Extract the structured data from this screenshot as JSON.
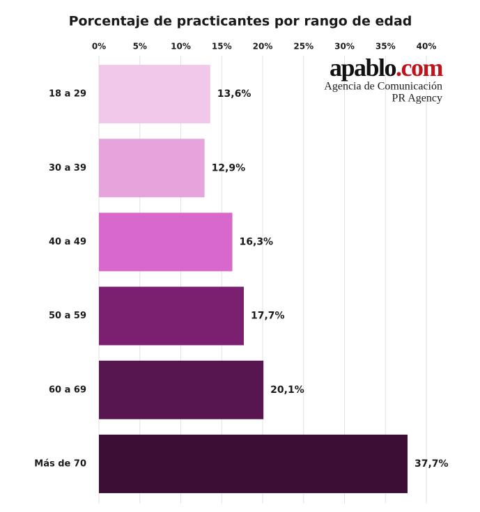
{
  "chart_data": {
    "type": "bar",
    "orientation": "horizontal",
    "title": "Porcentaje de practicantes por rango de edad",
    "categories": [
      "18 a 29",
      "30 a 39",
      "40 a 49",
      "50 a 59",
      "60 a 69",
      "Más de 70"
    ],
    "values": [
      13.6,
      12.9,
      16.3,
      17.7,
      20.1,
      37.7
    ],
    "value_labels": [
      "13,6%",
      "12,9%",
      "16,3%",
      "17,7%",
      "20,1%",
      "37,7%"
    ],
    "colors": [
      "#f2c8ea",
      "#e6a3dc",
      "#d968cc",
      "#7b1f70",
      "#581650",
      "#3c0d35"
    ],
    "xlim": [
      0,
      40
    ],
    "xticks": [
      {
        "value": 0,
        "label": "0%"
      },
      {
        "value": 5,
        "label": "5%"
      },
      {
        "value": 10,
        "label": "10%"
      },
      {
        "value": 15,
        "label": "15%"
      },
      {
        "value": 20,
        "label": "20%"
      },
      {
        "value": 25,
        "label": "25%"
      },
      {
        "value": 30,
        "label": "30%"
      },
      {
        "value": 35,
        "label": "35%"
      },
      {
        "value": 40,
        "label": "40%"
      }
    ],
    "grid": true,
    "watermark": {
      "brand": "apablo",
      "brand_suffix": ".com",
      "line1": "Agencia de Comunicación",
      "line2": "PR Agency"
    }
  }
}
